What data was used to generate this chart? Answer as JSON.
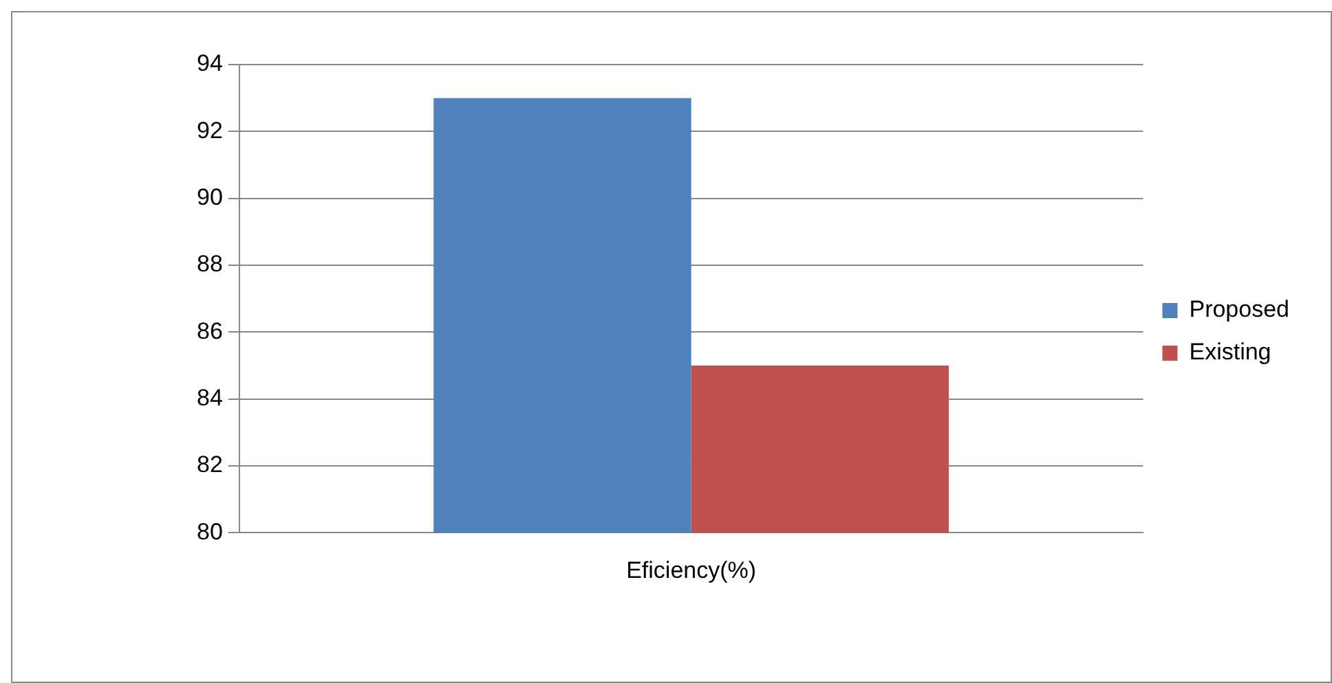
{
  "chart_data": {
    "type": "bar",
    "categories": [
      "Eficiency(%)"
    ],
    "series": [
      {
        "name": "Proposed",
        "color": "#4f81bd",
        "values": [
          93
        ]
      },
      {
        "name": "Existing",
        "color": "#c0504d",
        "values": [
          85
        ]
      }
    ],
    "ylim": [
      80,
      94
    ],
    "yticks": [
      80,
      82,
      84,
      86,
      88,
      90,
      92,
      94
    ],
    "grid": "y",
    "legend": "right"
  }
}
